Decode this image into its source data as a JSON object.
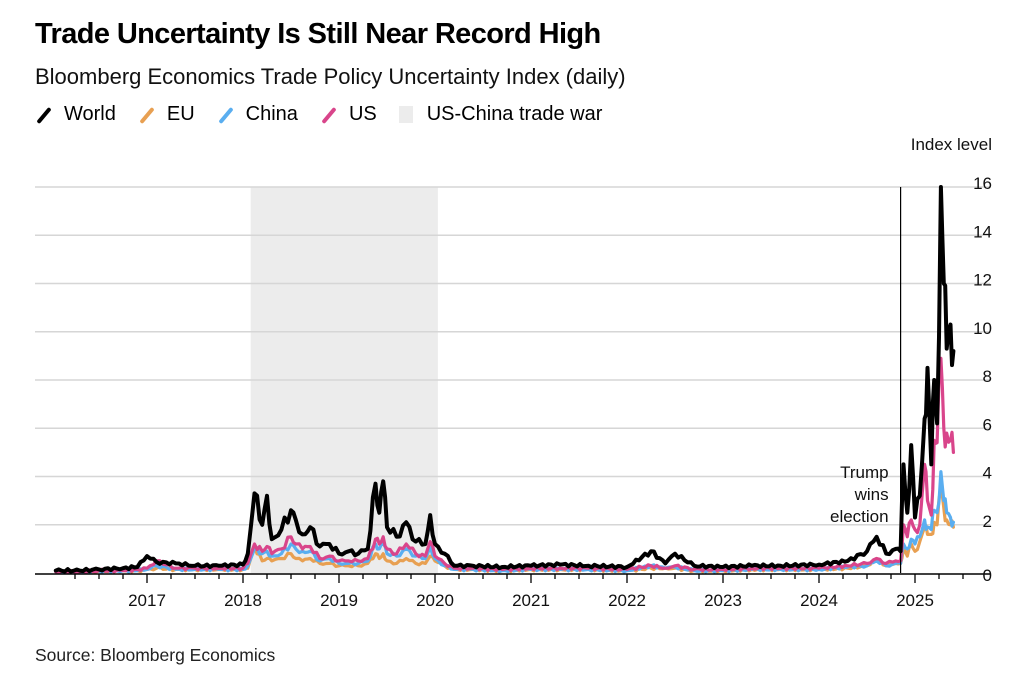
{
  "header": {
    "title": "Trade Uncertainty Is Still Near Record High",
    "subtitle": "Bloomberg Economics Trade Policy Uncertainty Index (daily)"
  },
  "legend": [
    {
      "label": "World",
      "type": "line",
      "color": "#000000"
    },
    {
      "label": "EU",
      "type": "line",
      "color": "#e8a052"
    },
    {
      "label": "China",
      "type": "line",
      "color": "#5aaef0"
    },
    {
      "label": "US",
      "type": "line",
      "color": "#d9458b"
    },
    {
      "label": "US-China trade war",
      "type": "shade",
      "color": "#ececec"
    }
  ],
  "footer": {
    "source": "Source: Bloomberg Economics"
  },
  "chart_data": {
    "type": "line",
    "title": "Trade Uncertainty Is Still Near Record High",
    "subtitle": "Bloomberg Economics Trade Policy Uncertainty Index (daily)",
    "xlabel": "",
    "ylabel": "Index level",
    "ylim": [
      0,
      16
    ],
    "xlim": [
      2016.0,
      2025.75
    ],
    "y_ticks": [
      0,
      2,
      4,
      6,
      8,
      10,
      12,
      14,
      16
    ],
    "x_ticks": [
      "2017",
      "2018",
      "2019",
      "2020",
      "2021",
      "2022",
      "2023",
      "2024",
      "2025"
    ],
    "x_tick_values": [
      2017,
      2018,
      2019,
      2020,
      2021,
      2022,
      2023,
      2024,
      2025
    ],
    "grid": "horizontal",
    "y_axis_position": "right",
    "legend_position": "top-left",
    "shaded_regions": [
      {
        "label": "US-China trade war",
        "start": 2018.08,
        "end": 2020.03,
        "color": "#ececec"
      }
    ],
    "annotations": [
      {
        "text": "Trump wins election",
        "x": 2024.85,
        "type": "vertical-line"
      }
    ],
    "x": [
      2016.05,
      2016.3,
      2016.5,
      2016.75,
      2016.9,
      2017.0,
      2017.1,
      2017.3,
      2017.5,
      2017.75,
      2018.0,
      2018.05,
      2018.12,
      2018.2,
      2018.25,
      2018.3,
      2018.4,
      2018.5,
      2018.55,
      2018.62,
      2018.7,
      2018.8,
      2018.9,
      2019.0,
      2019.1,
      2019.2,
      2019.3,
      2019.38,
      2019.42,
      2019.46,
      2019.5,
      2019.6,
      2019.7,
      2019.8,
      2019.9,
      2019.95,
      2020.0,
      2020.1,
      2020.2,
      2020.4,
      2020.7,
      2021.0,
      2021.3,
      2021.6,
      2022.0,
      2022.25,
      2022.4,
      2022.5,
      2022.7,
      2023.0,
      2023.3,
      2023.6,
      2024.0,
      2024.3,
      2024.5,
      2024.6,
      2024.7,
      2024.8,
      2024.85,
      2024.88,
      2024.92,
      2024.96,
      2025.0,
      2025.05,
      2025.1,
      2025.13,
      2025.17,
      2025.2,
      2025.23,
      2025.27,
      2025.3,
      2025.33,
      2025.37,
      2025.4
    ],
    "series": [
      {
        "name": "World",
        "color": "#000000",
        "values": [
          0.1,
          0.1,
          0.15,
          0.2,
          0.25,
          0.7,
          0.45,
          0.4,
          0.3,
          0.3,
          0.35,
          0.8,
          3.3,
          2.0,
          3.2,
          1.4,
          1.8,
          2.6,
          2.2,
          1.6,
          1.9,
          1.1,
          1.2,
          0.8,
          0.9,
          0.8,
          1.0,
          3.7,
          2.5,
          3.8,
          1.9,
          1.5,
          2.1,
          1.3,
          1.2,
          2.4,
          1.2,
          0.8,
          0.3,
          0.3,
          0.25,
          0.3,
          0.35,
          0.3,
          0.25,
          0.9,
          0.4,
          0.8,
          0.3,
          0.25,
          0.3,
          0.3,
          0.35,
          0.5,
          0.9,
          1.5,
          0.8,
          1.0,
          0.9,
          4.5,
          2.5,
          5.3,
          2.3,
          3.2,
          6.4,
          8.5,
          4.5,
          8.0,
          6.2,
          16.0,
          12.0,
          9.3,
          10.3,
          9.2
        ]
      },
      {
        "name": "US",
        "color": "#d9458b",
        "values": [
          0.05,
          0.05,
          0.1,
          0.1,
          0.15,
          0.2,
          0.5,
          0.2,
          0.2,
          0.2,
          0.2,
          0.4,
          1.2,
          0.9,
          1.1,
          0.8,
          1.0,
          1.5,
          1.2,
          1.0,
          1.1,
          0.6,
          0.7,
          0.5,
          0.5,
          0.5,
          0.6,
          1.4,
          1.2,
          1.5,
          1.0,
          0.8,
          1.2,
          0.8,
          0.7,
          1.3,
          0.7,
          0.4,
          0.2,
          0.2,
          0.15,
          0.2,
          0.2,
          0.2,
          0.15,
          0.3,
          0.2,
          0.3,
          0.15,
          0.15,
          0.2,
          0.2,
          0.2,
          0.3,
          0.4,
          0.6,
          0.4,
          0.5,
          0.5,
          2.0,
          1.5,
          2.2,
          1.8,
          2.0,
          4.5,
          3.0,
          2.4,
          5.5,
          5.4,
          8.9,
          6.0,
          5.8,
          5.5,
          5.0
        ]
      },
      {
        "name": "China",
        "color": "#5aaef0",
        "values": [
          0.05,
          0.05,
          0.08,
          0.1,
          0.1,
          0.15,
          0.3,
          0.15,
          0.15,
          0.15,
          0.15,
          0.3,
          1.0,
          0.8,
          0.9,
          0.7,
          0.8,
          1.2,
          1.0,
          0.9,
          0.9,
          0.5,
          0.6,
          0.4,
          0.4,
          0.4,
          0.5,
          1.2,
          1.0,
          1.2,
          0.8,
          0.7,
          1.0,
          0.7,
          0.6,
          1.1,
          0.6,
          0.3,
          0.15,
          0.15,
          0.1,
          0.15,
          0.15,
          0.15,
          0.1,
          0.3,
          0.2,
          0.25,
          0.1,
          0.1,
          0.15,
          0.15,
          0.15,
          0.25,
          0.3,
          0.5,
          0.3,
          0.4,
          0.4,
          1.2,
          1.0,
          1.4,
          1.2,
          1.5,
          2.2,
          1.9,
          1.8,
          2.6,
          2.5,
          4.2,
          3.0,
          2.5,
          2.3,
          2.1
        ]
      },
      {
        "name": "EU",
        "color": "#e8a052",
        "values": [
          0.05,
          0.05,
          0.08,
          0.1,
          0.1,
          0.15,
          0.2,
          0.15,
          0.15,
          0.15,
          0.15,
          0.2,
          1.1,
          0.5,
          0.6,
          0.5,
          0.6,
          0.8,
          0.6,
          0.5,
          0.6,
          0.4,
          0.4,
          0.3,
          0.3,
          0.3,
          0.4,
          0.8,
          0.6,
          0.8,
          0.5,
          0.4,
          0.6,
          0.4,
          0.4,
          0.7,
          0.5,
          0.3,
          0.15,
          0.15,
          0.1,
          0.15,
          0.15,
          0.15,
          0.1,
          0.2,
          0.2,
          0.2,
          0.1,
          0.1,
          0.15,
          0.15,
          0.15,
          0.2,
          0.3,
          0.6,
          0.3,
          0.4,
          0.4,
          1.0,
          0.7,
          1.2,
          0.9,
          1.3,
          1.9,
          1.6,
          1.6,
          2.1,
          2.0,
          3.5,
          2.7,
          2.2,
          2.0,
          1.9
        ]
      }
    ]
  }
}
